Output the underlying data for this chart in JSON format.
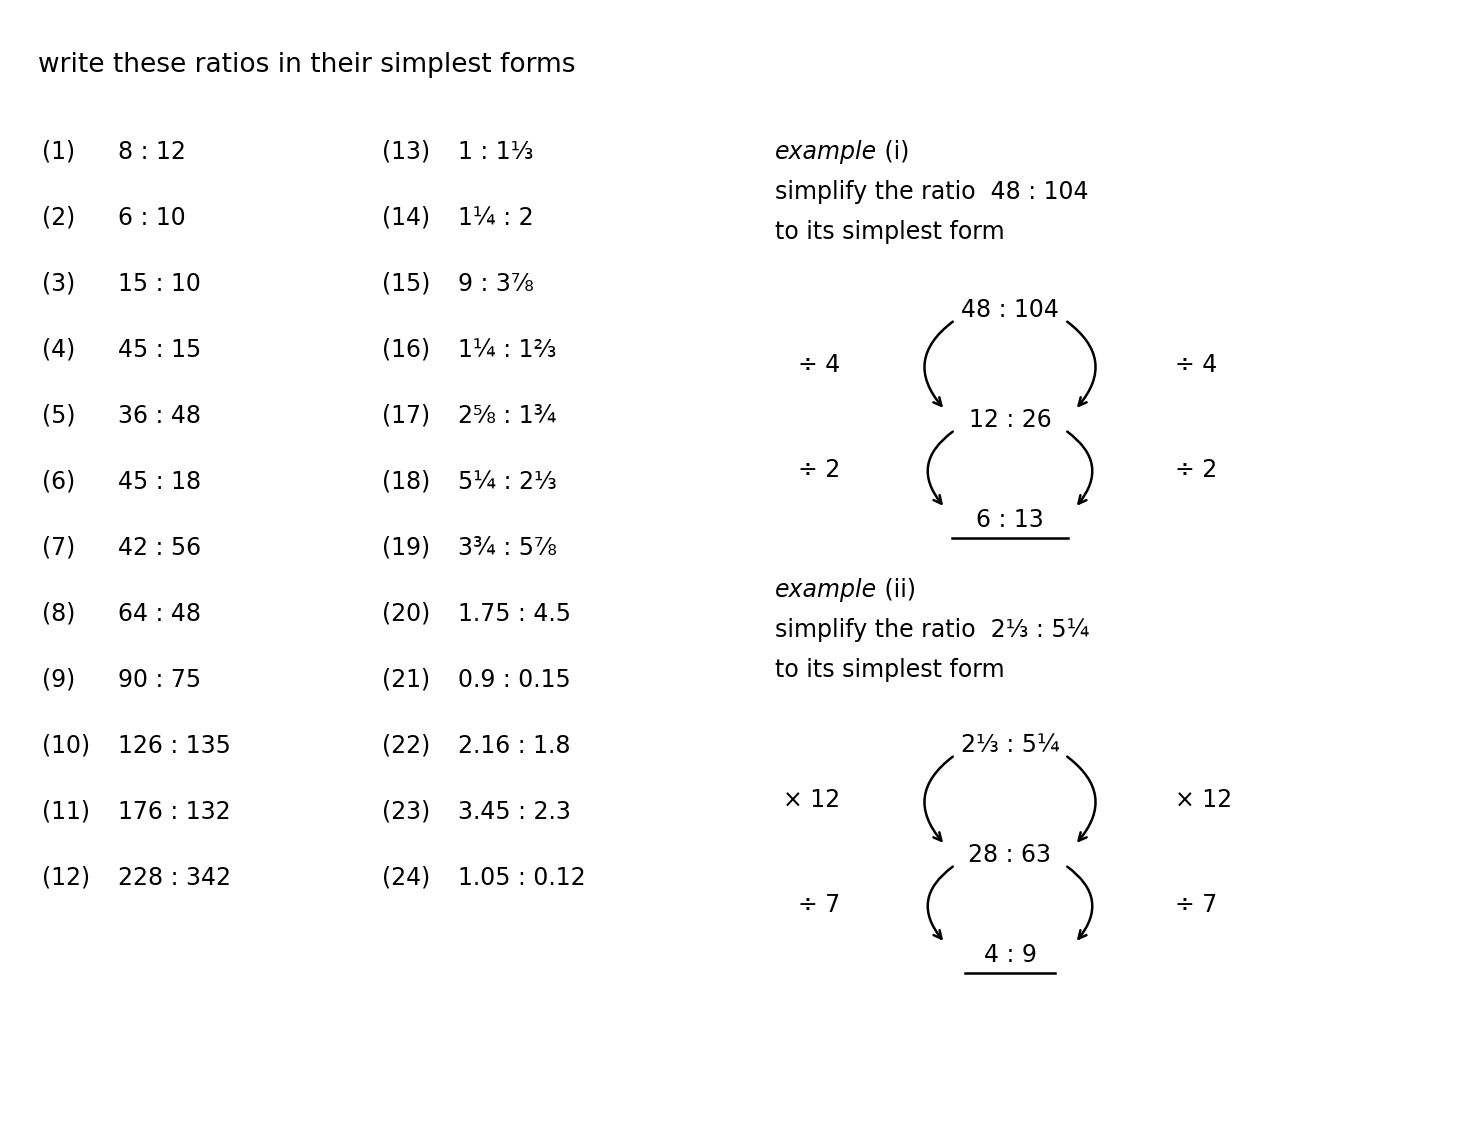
{
  "title": "write these ratios in their simplest forms",
  "col1_items": [
    [
      "(1)",
      "8 : 12"
    ],
    [
      "(2)",
      "6 : 10"
    ],
    [
      "(3)",
      "15 : 10"
    ],
    [
      "(4)",
      "45 : 15"
    ],
    [
      "(5)",
      "36 : 48"
    ],
    [
      "(6)",
      "45 : 18"
    ],
    [
      "(7)",
      "42 : 56"
    ],
    [
      "(8)",
      "64 : 48"
    ],
    [
      "(9)",
      "90 : 75"
    ],
    [
      "(10)",
      "126 : 135"
    ],
    [
      "(11)",
      "176 : 132"
    ],
    [
      "(12)",
      "228 : 342"
    ]
  ],
  "col2_items": [
    [
      "(13)",
      "1 : 1⅓"
    ],
    [
      "(14)",
      "1¼ : 2"
    ],
    [
      "(15)",
      "9 : 3⅞"
    ],
    [
      "(16)",
      "1¼ : 1⅔"
    ],
    [
      "(17)",
      "2⅝ : 1¾"
    ],
    [
      "(18)",
      "5¼ : 2⅓"
    ],
    [
      "(19)",
      "3¾ : 5⅞"
    ],
    [
      "(20)",
      "1.75 : 4.5"
    ],
    [
      "(21)",
      "0.9 : 0.15"
    ],
    [
      "(22)",
      "2.16 : 1.8"
    ],
    [
      "(23)",
      "3.45 : 2.3"
    ],
    [
      "(24)",
      "1.05 : 0.12"
    ]
  ],
  "example1_title_italic": "example",
  "example1_title_roman": " (i)",
  "example1_line1": "simplify the ratio  48 : 104",
  "example1_line2": "to its simplest form",
  "example1_top": "48 : 104",
  "example1_mid": "12 : 26",
  "example1_bot": "6 : 13",
  "example1_div_left_top": "÷ 4",
  "example1_div_right_top": "÷ 4",
  "example1_div_left_bot": "÷ 2",
  "example1_div_right_bot": "÷ 2",
  "example2_title_italic": "example",
  "example2_title_roman": " (ii)",
  "example2_line1": "simplify the ratio  2⅓ : 5¼",
  "example2_line2": "to its simplest form",
  "example2_top": "2⅓ : 5¼",
  "example2_mid": "28 : 63",
  "example2_bot": "4 : 9",
  "example2_mul_left": "× 12",
  "example2_mul_right": "× 12",
  "example2_div_left": "÷ 7",
  "example2_div_right": "÷ 7",
  "bg_color": "#ffffff",
  "text_color": "#000000",
  "font_size": 17,
  "title_font_size": 19
}
